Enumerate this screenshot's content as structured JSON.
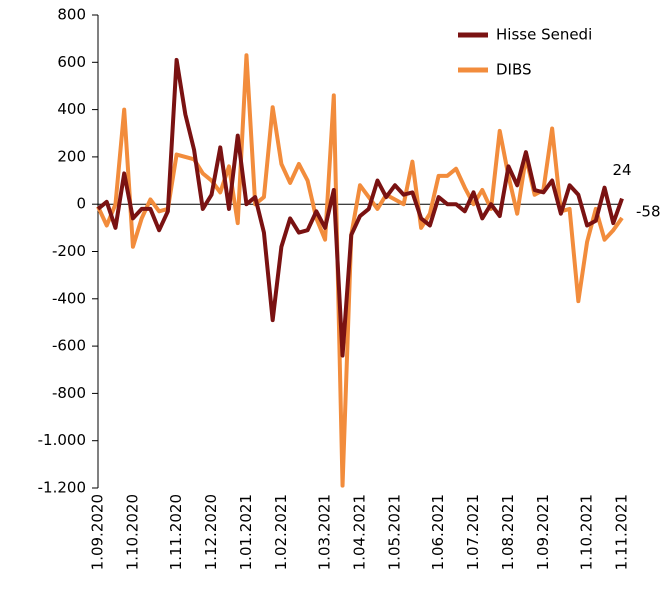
{
  "chart_data": {
    "type": "line",
    "categories": [
      "1.09.2020",
      null,
      null,
      null,
      "1.10.2020",
      null,
      null,
      null,
      null,
      "1.11.2020",
      null,
      null,
      null,
      "1.12.2020",
      null,
      null,
      null,
      "1.01.2021",
      null,
      null,
      null,
      "1.02.2021",
      null,
      null,
      null,
      null,
      "1.03.2021",
      null,
      null,
      null,
      "1.04.2021",
      null,
      null,
      null,
      "1.05.2021",
      null,
      null,
      null,
      null,
      "1.06.2021",
      null,
      null,
      null,
      "1.07.2021",
      null,
      null,
      null,
      "1.08.2021",
      null,
      null,
      null,
      "1.09.2021",
      null,
      null,
      null,
      null,
      "1.10.2021",
      null,
      null,
      null,
      "1.11.2021"
    ],
    "series": [
      {
        "name": "Hisse Senedi",
        "color": "#7a1212",
        "values": [
          -20,
          10,
          -100,
          130,
          -60,
          -20,
          -20,
          -110,
          -30,
          610,
          380,
          230,
          -20,
          40,
          240,
          -20,
          290,
          0,
          30,
          -120,
          -490,
          -180,
          -60,
          -120,
          -110,
          -30,
          -100,
          60,
          -640,
          -130,
          -50,
          -20,
          100,
          30,
          80,
          40,
          50,
          -60,
          -90,
          30,
          0,
          0,
          -30,
          50,
          -60,
          0,
          -50,
          160,
          80,
          220,
          60,
          50,
          100,
          -40,
          80,
          40,
          -90,
          -70,
          70,
          -80,
          24
        ]
      },
      {
        "name": "DIBS",
        "color": "#f28c3c",
        "values": [
          -10,
          -90,
          0,
          400,
          -180,
          -60,
          20,
          -30,
          -20,
          210,
          200,
          190,
          130,
          100,
          50,
          160,
          -80,
          630,
          0,
          30,
          410,
          170,
          90,
          170,
          100,
          -60,
          -150,
          460,
          -1190,
          -130,
          80,
          30,
          -20,
          40,
          20,
          0,
          180,
          -100,
          -40,
          120,
          120,
          150,
          70,
          0,
          60,
          -20,
          310,
          120,
          -40,
          200,
          40,
          60,
          320,
          -30,
          -20,
          -410,
          -160,
          -20,
          -150,
          -110,
          -58
        ]
      }
    ],
    "ylim": [
      -1200,
      800
    ],
    "yticks": [
      {
        "value": -1200,
        "label": "-1.200"
      },
      {
        "value": -1000,
        "label": "-1.000"
      },
      -800,
      -600,
      -400,
      -200,
      0,
      200,
      400,
      600,
      800
    ],
    "legend": "top-right"
  }
}
